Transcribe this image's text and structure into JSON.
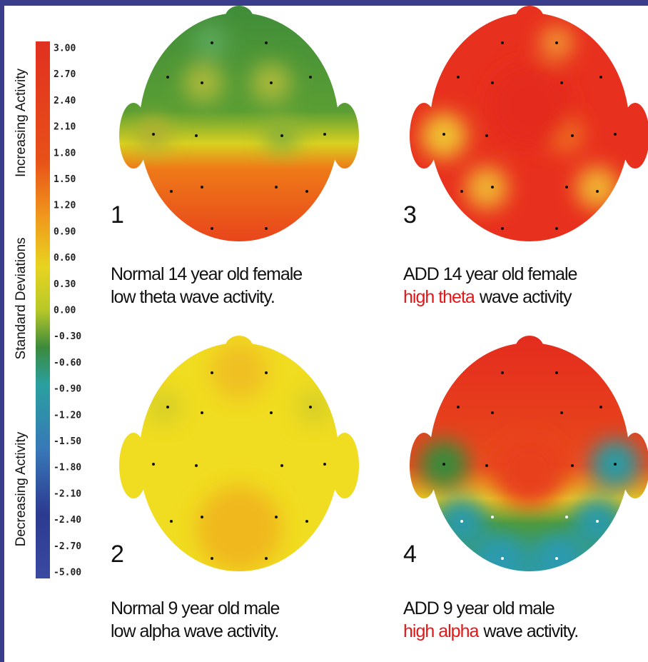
{
  "scale": {
    "increasing": "Increasing Activity",
    "axis_title": "Standard Deviations",
    "decreasing": "Decreasing Activity",
    "labels": [
      "3.00",
      "2.70",
      "2.40",
      "2.10",
      "1.80",
      "1.50",
      "1.20",
      "0.90",
      "0.60",
      "0.30",
      "0.00",
      "-0.30",
      "-0.60",
      "-0.90",
      "-1.20",
      "-1.50",
      "-1.80",
      "-2.10",
      "-2.40",
      "-2.70",
      "-5.00"
    ]
  },
  "panels": [
    {
      "number": "1",
      "line1": "Normal 14 year old female",
      "line2": "low theta wave activity."
    },
    {
      "number": "2",
      "line1": "Normal 9 year old male",
      "line2": "low alpha wave activity."
    },
    {
      "number": "3",
      "line1": "ADD 14 year old female",
      "line2_highlight": "high theta",
      "line2_rest": "wave activity"
    },
    {
      "number": "4",
      "line1": "ADD 9 year old male",
      "line2_highlight": "high alpha",
      "line2_rest": "wave activity."
    }
  ]
}
